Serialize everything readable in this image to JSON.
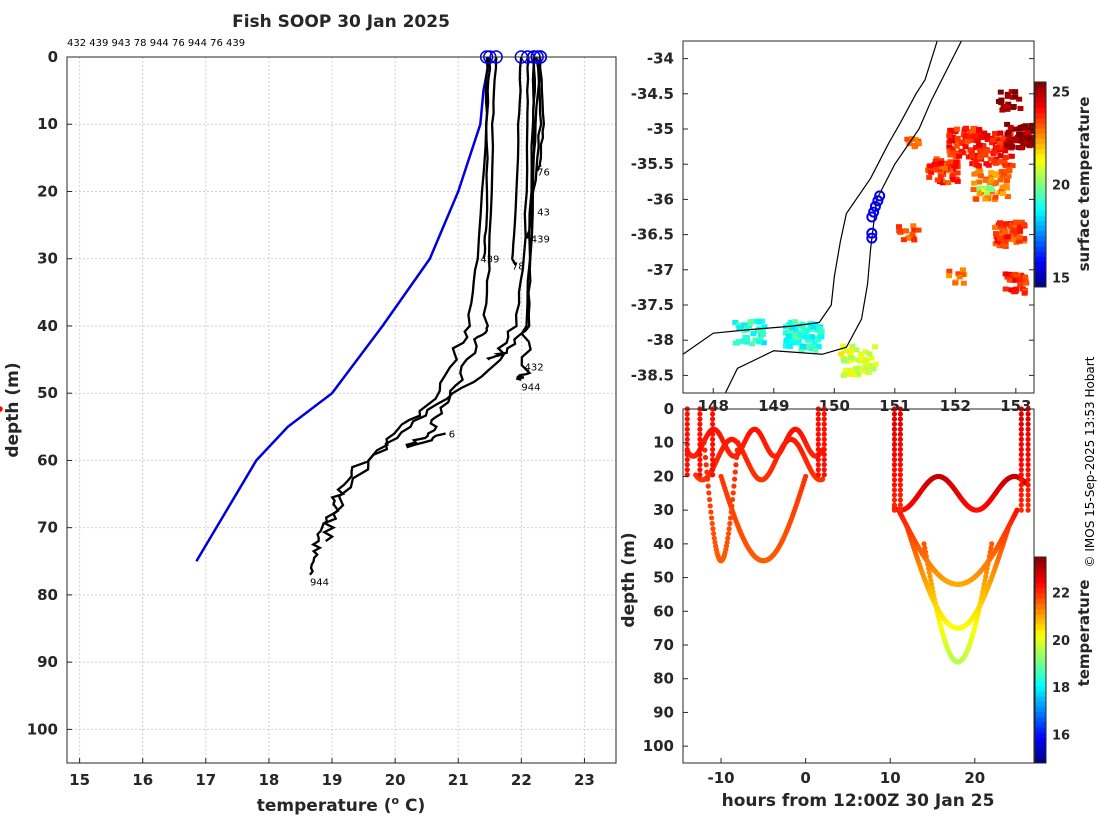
{
  "title": "Fish SOOP 30 Jan 2025",
  "copyright": "© IMOS 15-Sep-2025 13:53 Hobart",
  "colors": {
    "clim": "#0000dd",
    "profile": "#000000",
    "marker": "#0000ee",
    "coast": "#000000"
  },
  "chart_data": [
    {
      "type": "line",
      "name": "temperature-profiles",
      "xlabel": "temperature (o C)",
      "xlabel_prefix": "temperature (",
      "xlabel_sup": "o",
      "xlabel_suffix": " C)",
      "ylabel": "depth (m)",
      "xlim": [
        14.8,
        23.5
      ],
      "ylim": [
        105,
        0
      ],
      "xticks": [
        15,
        16,
        17,
        18,
        19,
        20,
        21,
        22,
        23
      ],
      "yticks": [
        0,
        10,
        20,
        30,
        40,
        50,
        60,
        70,
        80,
        90,
        100
      ],
      "top_id_text": "432 439 943 78 944 76 944 76 439",
      "climatology": {
        "name": "climatology",
        "temperature": [
          21.5,
          21.4,
          21.35,
          21.0,
          20.55,
          19.8,
          19.0,
          18.3,
          17.8,
          16.85
        ],
        "depth": [
          0,
          5,
          10,
          20,
          30,
          40,
          50,
          55,
          60,
          75
        ]
      },
      "series": [
        {
          "id": "944",
          "temperature": [
            21.5,
            21.45,
            21.3,
            21.15,
            20.9,
            20.5,
            20.0,
            19.4,
            19.1,
            19.0,
            18.8,
            18.7,
            18.65
          ],
          "depth": [
            0,
            10,
            30,
            40,
            45,
            52,
            56,
            61,
            65,
            68,
            71,
            74,
            77
          ]
        },
        {
          "id": "944",
          "temperature": [
            22.1,
            22.1,
            22.05,
            21.9,
            21.6,
            21.0,
            20.2,
            19.6,
            19.0,
            18.9
          ],
          "depth": [
            0,
            10,
            30,
            40,
            45,
            50,
            55,
            60,
            68,
            72
          ]
        },
        {
          "id": "76",
          "temperature": [
            21.6,
            21.55,
            21.5,
            21.4,
            21.3,
            21.0,
            20.7,
            20.5,
            20.2,
            20.8
          ],
          "depth": [
            0,
            10,
            30,
            40,
            42,
            48,
            53,
            56,
            58,
            56
          ]
        },
        {
          "id": "76",
          "temperature": [
            22.3,
            22.35,
            22.3,
            22.25
          ],
          "depth": [
            0,
            10,
            16,
            17
          ]
        },
        {
          "id": "943",
          "temperature": [
            22.25,
            22.3,
            22.2,
            22.15
          ],
          "depth": [
            0,
            10,
            20,
            23
          ]
        },
        {
          "id": "439",
          "temperature": [
            21.45,
            21.45,
            21.45,
            21.4
          ],
          "depth": [
            0,
            10,
            25,
            30
          ]
        },
        {
          "id": "439",
          "temperature": [
            22.3,
            22.2,
            22.15,
            22.1
          ],
          "depth": [
            0,
            15,
            25,
            27
          ]
        },
        {
          "id": "78",
          "temperature": [
            22.0,
            21.95,
            21.9,
            21.85,
            21.9
          ],
          "depth": [
            0,
            10,
            25,
            30,
            31
          ]
        },
        {
          "id": "432",
          "temperature": [
            22.2,
            22.2,
            22.15,
            22.1,
            21.7,
            21.5
          ],
          "depth": [
            0,
            10,
            30,
            40,
            44,
            45
          ]
        },
        {
          "id": "944",
          "temperature": [
            22.2,
            22.15,
            22.1,
            22.05,
            22.0
          ],
          "depth": [
            0,
            20,
            40,
            47,
            48
          ]
        }
      ],
      "end_labels": [
        {
          "text": "944",
          "t": 18.65,
          "d": 78
        },
        {
          "text": "6",
          "t": 20.85,
          "d": 56
        },
        {
          "text": "432",
          "t": 22.05,
          "d": 46
        },
        {
          "text": "944",
          "t": 22.0,
          "d": 49
        },
        {
          "text": "78",
          "t": 21.85,
          "d": 31
        },
        {
          "text": "439",
          "t": 21.35,
          "d": 30
        },
        {
          "text": "439",
          "t": 22.15,
          "d": 27
        },
        {
          "text": "43",
          "t": 22.25,
          "d": 23
        },
        {
          "text": "76",
          "t": 22.25,
          "d": 17
        }
      ]
    },
    {
      "type": "scatter",
      "name": "surface-temperature-map",
      "xlim": [
        147.5,
        153.3
      ],
      "ylim": [
        -38.75,
        -33.75
      ],
      "xticks": [
        148,
        149,
        150,
        151,
        152,
        153
      ],
      "yticks": [
        -34,
        -34.5,
        -35,
        -35.5,
        -36,
        -36.5,
        -37,
        -37.5,
        -38,
        -38.5
      ],
      "ytick_labels": [
        "-34",
        "-34.5",
        "-35",
        "-35.5",
        "-36",
        "-36.5",
        "-37",
        "-37.5",
        "-38",
        "-38.5"
      ],
      "colorbar": {
        "label": "surface temperature",
        "min": 14.5,
        "max": 25.5,
        "ticks": [
          15,
          20,
          25
        ]
      },
      "track": [
        {
          "lon": 150.75,
          "lat": -35.95
        },
        {
          "lon": 150.72,
          "lat": -36.02
        },
        {
          "lon": 150.68,
          "lat": -36.1
        },
        {
          "lon": 150.65,
          "lat": -36.18
        },
        {
          "lon": 150.62,
          "lat": -36.25
        },
        {
          "lon": 150.62,
          "lat": -36.48
        },
        {
          "lon": 150.62,
          "lat": -36.55
        }
      ]
    },
    {
      "type": "scatter",
      "name": "depth-time-section",
      "xlabel": "hours from 12:00Z 30 Jan 25",
      "ylabel": "depth (m)",
      "xlim": [
        -14.5,
        27
      ],
      "ylim": [
        105,
        0
      ],
      "xticks": [
        -10,
        0,
        10,
        20
      ],
      "yticks": [
        0,
        10,
        20,
        30,
        40,
        50,
        60,
        70,
        80,
        90,
        100
      ],
      "colorbar": {
        "label": "temperature",
        "min": 14.8,
        "max": 23.5,
        "ticks": [
          16,
          18,
          20,
          22
        ]
      }
    }
  ]
}
